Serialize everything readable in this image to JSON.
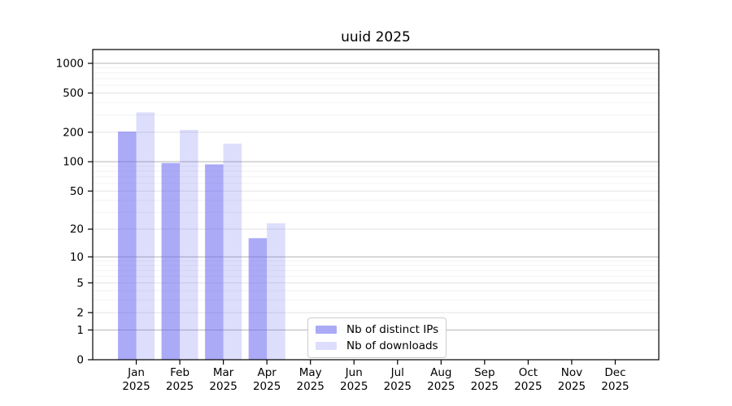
{
  "figure": {
    "title": "uuid 2025"
  },
  "chart_data": {
    "type": "bar",
    "title": "uuid 2025",
    "categories": [
      "Jan 2025",
      "Feb 2025",
      "Mar 2025",
      "Apr 2025",
      "May 2025",
      "Jun 2025",
      "Jul 2025",
      "Aug 2025",
      "Sep 2025",
      "Oct 2025",
      "Nov 2025",
      "Dec 2025"
    ],
    "x_tick_months": [
      "Jan",
      "Feb",
      "Mar",
      "Apr",
      "May",
      "Jun",
      "Jul",
      "Aug",
      "Sep",
      "Oct",
      "Nov",
      "Dec"
    ],
    "x_tick_year": "2025",
    "series": [
      {
        "name": "Nb of distinct IPs",
        "color": "rgba(100,100,240,0.55)",
        "values": [
          203,
          97,
          94,
          16,
          null,
          null,
          null,
          null,
          null,
          null,
          null,
          null
        ]
      },
      {
        "name": "Nb of downloads",
        "color": "rgba(100,100,240,0.22)",
        "values": [
          318,
          211,
          153,
          23,
          null,
          null,
          null,
          null,
          null,
          null,
          null,
          null
        ]
      }
    ],
    "y_axis": {
      "scale": "log10(value+1)",
      "ticks": [
        0,
        1,
        2,
        5,
        10,
        20,
        50,
        100,
        200,
        500,
        1000
      ],
      "minor_gridlines": [
        3,
        4,
        6,
        7,
        8,
        9,
        30,
        40,
        60,
        70,
        80,
        90,
        300,
        400,
        600,
        700,
        800,
        900
      ],
      "range_top": 1390
    },
    "grid": true,
    "legend": {
      "position": "lower center",
      "entries": [
        "Nb of distinct IPs",
        "Nb of downloads"
      ]
    }
  },
  "colors": {
    "bar_dark": "rgba(100,100,240,0.55)",
    "bar_light": "rgba(100,100,240,0.22)",
    "grid_major": "#b3b3b3",
    "grid_mid": "#e3e3e3",
    "grid_minor": "#f2f2f2",
    "spine": "#000000"
  }
}
